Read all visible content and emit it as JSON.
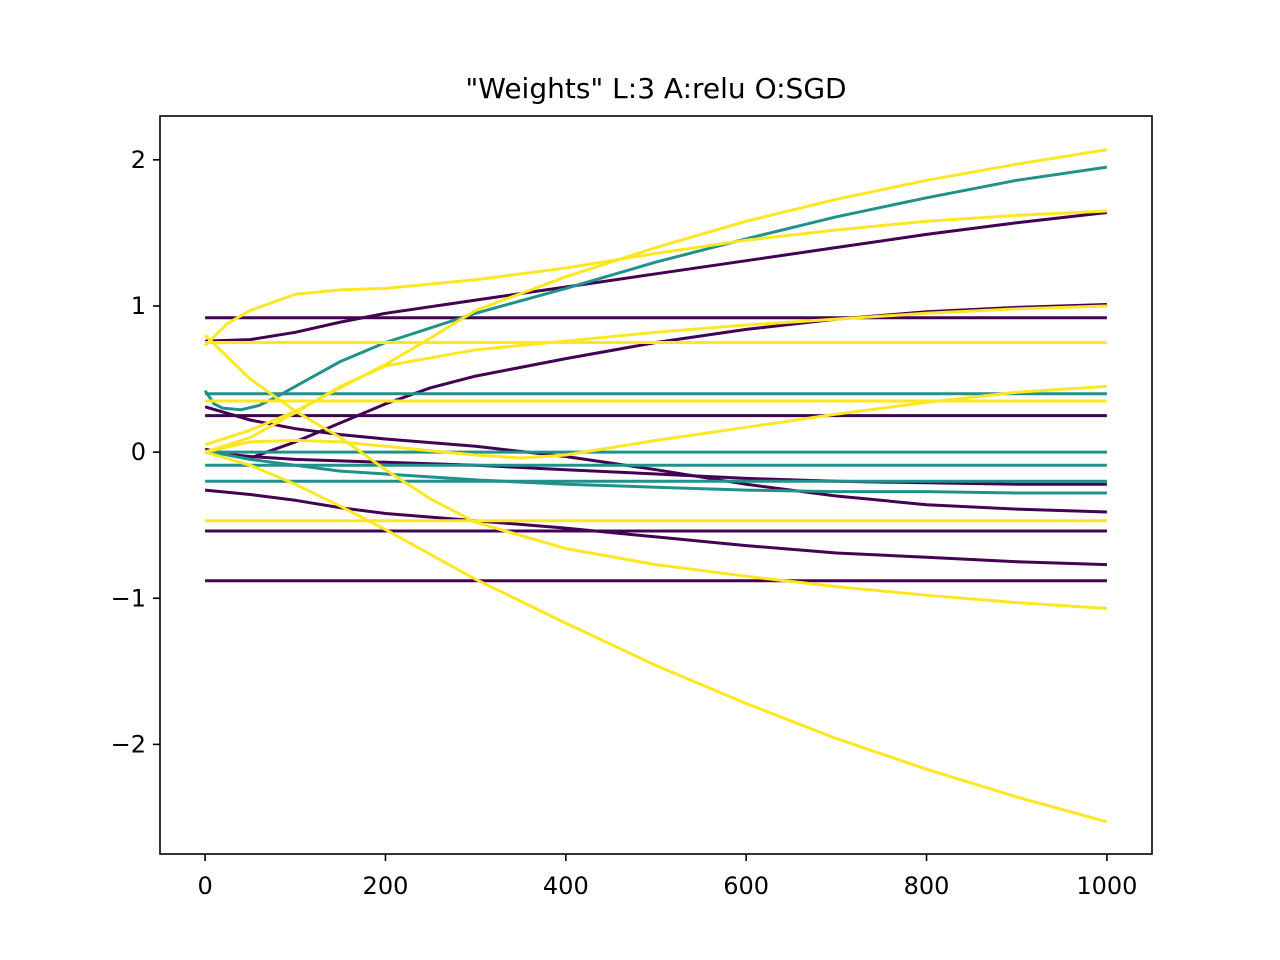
{
  "chart_data": {
    "type": "line",
    "title": "\"Weights\" L:3 A:relu O:SGD",
    "xlabel": "",
    "ylabel": "",
    "xlim": [
      -50,
      1050
    ],
    "ylim": [
      -2.75,
      2.3
    ],
    "xticks": [
      0,
      200,
      400,
      600,
      800,
      1000
    ],
    "xtick_labels": [
      "0",
      "200",
      "400",
      "600",
      "800",
      "1000"
    ],
    "yticks": [
      2,
      1,
      0,
      -1,
      -2
    ],
    "ytick_labels": [
      "2",
      "1",
      "0",
      "−1",
      "−2"
    ],
    "grid": false,
    "legend": "none",
    "colors": {
      "layer1": "#440154",
      "layer2": "#21918c",
      "layer3": "#fde725"
    },
    "series": [
      {
        "color": "layer1",
        "x": [
          0,
          1000
        ],
        "y": [
          0.92,
          0.92
        ]
      },
      {
        "color": "layer1",
        "x": [
          0,
          1000
        ],
        "y": [
          0.25,
          0.25
        ]
      },
      {
        "color": "layer1",
        "x": [
          0,
          1000
        ],
        "y": [
          -0.54,
          -0.54
        ]
      },
      {
        "color": "layer1",
        "x": [
          0,
          1000
        ],
        "y": [
          -0.88,
          -0.88
        ]
      },
      {
        "color": "layer1",
        "x": [
          0,
          50,
          100,
          150,
          200,
          300,
          400,
          500,
          600,
          700,
          800,
          900,
          1000
        ],
        "y": [
          0.76,
          0.77,
          0.82,
          0.89,
          0.95,
          1.04,
          1.13,
          1.22,
          1.31,
          1.4,
          1.49,
          1.57,
          1.64
        ]
      },
      {
        "color": "layer1",
        "x": [
          0,
          50,
          100,
          150,
          200,
          250,
          300,
          400,
          500,
          600,
          700,
          800,
          900,
          1000
        ],
        "y": [
          0.02,
          -0.04,
          0.07,
          0.2,
          0.33,
          0.44,
          0.52,
          0.64,
          0.75,
          0.84,
          0.91,
          0.96,
          0.99,
          1.01
        ]
      },
      {
        "color": "layer1",
        "x": [
          0,
          50,
          100,
          150,
          200,
          300,
          400,
          500,
          600,
          700,
          800,
          900,
          1000
        ],
        "y": [
          0.31,
          0.22,
          0.16,
          0.12,
          0.09,
          0.04,
          -0.03,
          -0.12,
          -0.22,
          -0.3,
          -0.36,
          -0.39,
          -0.41
        ]
      },
      {
        "color": "layer1",
        "x": [
          0,
          50,
          100,
          150,
          200,
          300,
          400,
          500,
          600,
          700,
          800,
          900,
          1000
        ],
        "y": [
          0.0,
          -0.03,
          -0.05,
          -0.06,
          -0.07,
          -0.09,
          -0.12,
          -0.15,
          -0.18,
          -0.2,
          -0.21,
          -0.22,
          -0.22
        ]
      },
      {
        "color": "layer1",
        "x": [
          0,
          50,
          100,
          150,
          200,
          300,
          400,
          500,
          600,
          700,
          800,
          900,
          1000
        ],
        "y": [
          -0.26,
          -0.29,
          -0.33,
          -0.38,
          -0.42,
          -0.47,
          -0.52,
          -0.58,
          -0.64,
          -0.69,
          -0.72,
          -0.75,
          -0.77
        ]
      },
      {
        "color": "layer2",
        "x": [
          0,
          1000
        ],
        "y": [
          0.4,
          0.4
        ]
      },
      {
        "color": "layer2",
        "x": [
          0,
          1000
        ],
        "y": [
          0.0,
          0.0
        ]
      },
      {
        "color": "layer2",
        "x": [
          0,
          1000
        ],
        "y": [
          -0.09,
          -0.09
        ]
      },
      {
        "color": "layer2",
        "x": [
          0,
          1000
        ],
        "y": [
          -0.2,
          -0.2
        ]
      },
      {
        "color": "layer2",
        "x": [
          0,
          10,
          20,
          40,
          60,
          80,
          100,
          150,
          200,
          300,
          400,
          500,
          600,
          700,
          800,
          900,
          1000
        ],
        "y": [
          0.42,
          0.33,
          0.3,
          0.29,
          0.32,
          0.38,
          0.45,
          0.62,
          0.75,
          0.95,
          1.12,
          1.3,
          1.46,
          1.61,
          1.74,
          1.86,
          1.95
        ]
      },
      {
        "color": "layer2",
        "x": [
          0,
          50,
          100,
          150,
          200,
          300,
          400,
          500,
          600,
          700,
          800,
          900,
          1000
        ],
        "y": [
          0.01,
          -0.05,
          -0.09,
          -0.13,
          -0.15,
          -0.19,
          -0.22,
          -0.24,
          -0.26,
          -0.27,
          -0.27,
          -0.28,
          -0.28
        ]
      },
      {
        "color": "layer3",
        "x": [
          0,
          1000
        ],
        "y": [
          0.75,
          0.75
        ]
      },
      {
        "color": "layer3",
        "x": [
          0,
          1000
        ],
        "y": [
          0.35,
          0.35
        ]
      },
      {
        "color": "layer3",
        "x": [
          0,
          1000
        ],
        "y": [
          -0.47,
          -0.47
        ]
      },
      {
        "color": "layer3",
        "x": [
          0,
          25,
          50,
          100,
          150,
          200,
          300,
          400,
          500,
          600,
          700,
          800,
          900,
          1000
        ],
        "y": [
          0.73,
          0.88,
          0.97,
          1.08,
          1.11,
          1.12,
          1.18,
          1.26,
          1.36,
          1.45,
          1.52,
          1.58,
          1.62,
          1.65
        ]
      },
      {
        "color": "layer3",
        "x": [
          0,
          50,
          100,
          150,
          200,
          250,
          300,
          400,
          500,
          600,
          700,
          800,
          900,
          1000
        ],
        "y": [
          0.05,
          0.15,
          0.28,
          0.44,
          0.6,
          0.78,
          0.97,
          1.2,
          1.4,
          1.58,
          1.73,
          1.86,
          1.97,
          2.07
        ]
      },
      {
        "color": "layer3",
        "x": [
          0,
          50,
          100,
          150,
          200,
          300,
          400,
          500,
          600,
          700,
          800,
          900,
          1000
        ],
        "y": [
          0.0,
          0.1,
          0.27,
          0.45,
          0.59,
          0.7,
          0.76,
          0.82,
          0.87,
          0.91,
          0.95,
          0.98,
          1.0
        ]
      },
      {
        "color": "layer3",
        "x": [
          0,
          50,
          100,
          150,
          200,
          250,
          300,
          400,
          500,
          600,
          700,
          800,
          900,
          1000
        ],
        "y": [
          0.8,
          0.5,
          0.28,
          0.1,
          -0.12,
          -0.32,
          -0.48,
          -0.66,
          -0.77,
          -0.85,
          -0.92,
          -0.98,
          -1.03,
          -1.07
        ]
      },
      {
        "color": "layer3",
        "x": [
          0,
          50,
          100,
          150,
          200,
          300,
          400,
          500,
          600,
          700,
          800,
          900,
          1000
        ],
        "y": [
          0.0,
          -0.09,
          -0.22,
          -0.37,
          -0.53,
          -0.87,
          -1.17,
          -1.46,
          -1.72,
          -1.96,
          -2.17,
          -2.36,
          -2.53
        ]
      },
      {
        "color": "layer3",
        "x": [
          0,
          50,
          100,
          150,
          200,
          250,
          300,
          350,
          400,
          500,
          600,
          700,
          800,
          900,
          1000
        ],
        "y": [
          0.0,
          0.07,
          0.08,
          0.07,
          0.04,
          0.01,
          -0.02,
          -0.04,
          -0.02,
          0.08,
          0.17,
          0.26,
          0.34,
          0.41,
          0.45
        ]
      }
    ]
  }
}
